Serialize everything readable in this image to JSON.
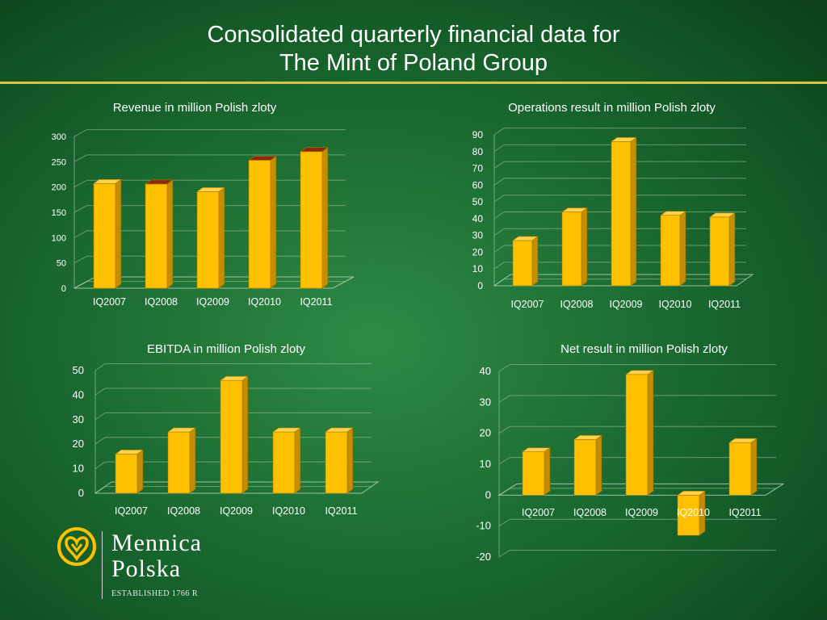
{
  "title_line1": "Consolidated quarterly financial data for",
  "title_line2": "The Mint of Poland Group",
  "logo": {
    "line1": "Mennica",
    "line2": "Polska",
    "est": "ESTABLISHED 1766 R",
    "icon": "mint-coin-emblem-icon"
  },
  "colors": {
    "bar": "#ffc000",
    "bar_top_dark": "#8b2a0f",
    "text": "#ffffff",
    "accent_rule": "#d7c24a"
  },
  "chart_data": [
    {
      "id": "revenue",
      "type": "bar",
      "title": "Revenue in million Polish zloty",
      "categories": [
        "IQ2007",
        "IQ2008",
        "IQ2009",
        "IQ2010",
        "IQ2011"
      ],
      "values": [
        207,
        206,
        191,
        253,
        270
      ],
      "ylim": [
        0,
        300
      ],
      "yticks": [
        "0",
        "50",
        "100",
        "150",
        "200",
        "250",
        "300"
      ],
      "grid": true
    },
    {
      "id": "operations",
      "type": "bar",
      "title": "Operations result in million Polish zloty",
      "categories": [
        "IQ2007",
        "IQ2008",
        "IQ2009",
        "IQ2010",
        "IQ2011"
      ],
      "values": [
        27,
        44,
        86,
        42,
        41
      ],
      "ylim": [
        0,
        90
      ],
      "yticks": [
        "0",
        "10",
        "20",
        "30",
        "40",
        "50",
        "60",
        "70",
        "80",
        "90"
      ],
      "grid": true
    },
    {
      "id": "ebitda",
      "type": "bar",
      "title": "EBITDA in million Polish zloty",
      "categories": [
        "IQ2007",
        "IQ2008",
        "IQ2009",
        "IQ2010",
        "IQ2011"
      ],
      "values": [
        16,
        25,
        46,
        25,
        25
      ],
      "ylim": [
        0,
        50
      ],
      "yticks": [
        "0",
        "10",
        "20",
        "30",
        "40",
        "50"
      ],
      "grid": true
    },
    {
      "id": "net",
      "type": "bar",
      "title": "Net result in million Polish zloty",
      "categories": [
        "IQ2007",
        "IQ2008",
        "IQ2009",
        "IQ2010",
        "IQ2011"
      ],
      "values": [
        14,
        18,
        39,
        -13,
        17
      ],
      "ylim": [
        -20,
        40
      ],
      "yticks": [
        "-20",
        "-10",
        "0",
        "10",
        "20",
        "30",
        "40"
      ],
      "grid": true
    }
  ]
}
